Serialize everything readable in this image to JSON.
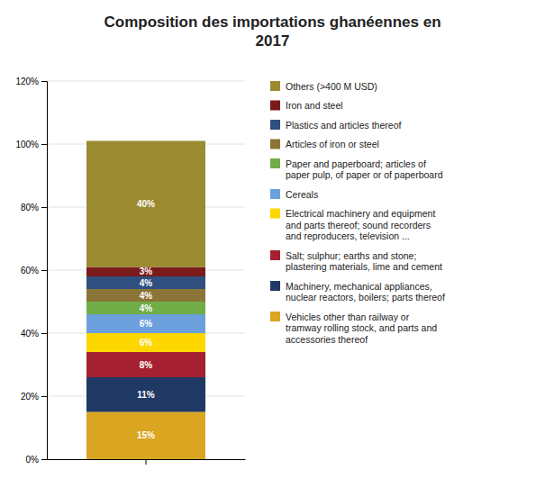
{
  "chart_data": {
    "type": "bar",
    "stacked": true,
    "title": "Composition des importations ghanéennes en\n2017",
    "categories": [
      null
    ],
    "series": [
      {
        "name": "Vehicles other than railway or\ntramway rolling stock, and parts and\naccessories thereof",
        "color": "#DAA520",
        "values": [
          15
        ],
        "value_labels": [
          "15%"
        ]
      },
      {
        "name": "Machinery, mechanical appliances,\nnuclear reactors, boilers; parts thereof",
        "color": "#1F3864",
        "values": [
          11
        ],
        "value_labels": [
          "11%"
        ]
      },
      {
        "name": "Salt; sulphur; earths and stone;\nplastering materials, lime and cement",
        "color": "#A52030",
        "values": [
          8
        ],
        "value_labels": [
          "8%"
        ]
      },
      {
        "name": "Electrical machinery and equipment\nand parts thereof; sound recorders\nand reproducers, television ...",
        "color": "#FFD700",
        "values": [
          6
        ],
        "value_labels": [
          "6%"
        ]
      },
      {
        "name": "Cereals",
        "color": "#6CA0DC",
        "values": [
          6
        ],
        "value_labels": [
          "6%"
        ]
      },
      {
        "name": "Paper and paperboard; articles of\npaper pulp, of paper or of paperboard",
        "color": "#70AD47",
        "values": [
          4
        ],
        "value_labels": [
          "4%"
        ]
      },
      {
        "name": "Articles of iron or steel",
        "color": "#8B7536",
        "values": [
          4
        ],
        "value_labels": [
          "4%"
        ]
      },
      {
        "name": "Plastics and articles thereof",
        "color": "#2F4F7F",
        "values": [
          4
        ],
        "value_labels": [
          "4%"
        ]
      },
      {
        "name": "Iron and steel",
        "color": "#7B1A1A",
        "values": [
          3
        ],
        "value_labels": [
          "3%"
        ]
      },
      {
        "name": "Others (>400 M USD)",
        "color": "#9B8B30",
        "values": [
          40
        ],
        "value_labels": [
          "40%"
        ]
      }
    ],
    "ylim": [
      0,
      120
    ],
    "yticks": [
      {
        "value": 0,
        "label": "0%"
      },
      {
        "value": 20,
        "label": "20%"
      },
      {
        "value": 40,
        "label": "40%"
      },
      {
        "value": 60,
        "label": "60%"
      },
      {
        "value": 80,
        "label": "80%"
      },
      {
        "value": 100,
        "label": "100%"
      },
      {
        "value": 120,
        "label": "120%"
      }
    ],
    "grid": true,
    "data_labels": true,
    "legend": "right"
  }
}
